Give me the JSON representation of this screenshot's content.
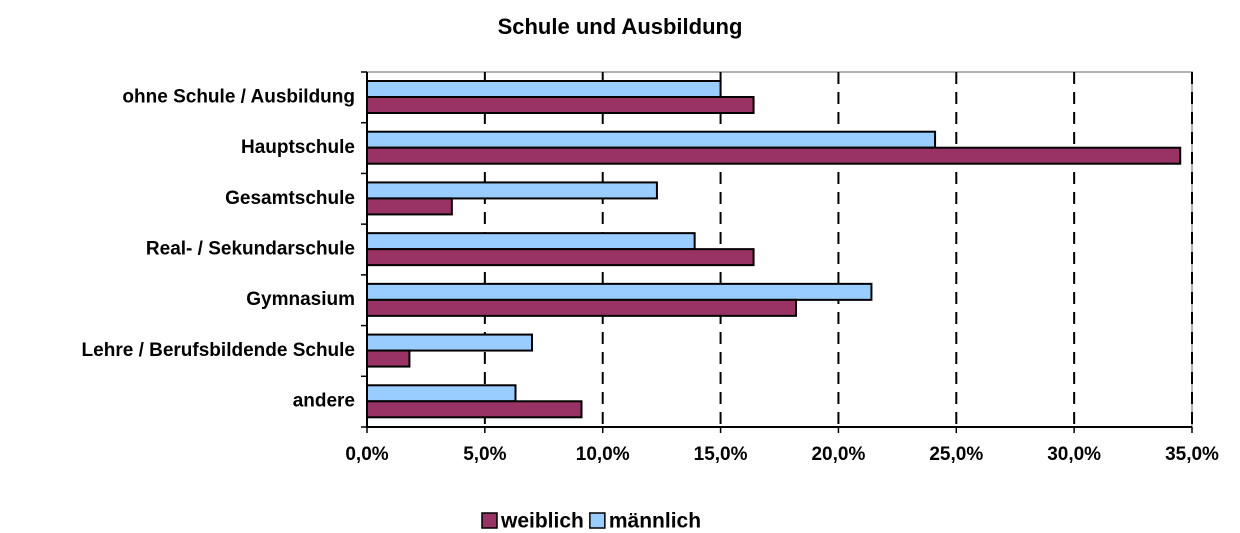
{
  "chart_data": {
    "type": "bar",
    "orientation": "horizontal",
    "title": "Schule und Ausbildung",
    "categories": [
      "ohne Schule / Ausbildung",
      "Hauptschule",
      "Gesamtschule",
      "Real- / Sekundarschule",
      "Gymnasium",
      "Lehre / Berufsbildende Schule",
      "andere"
    ],
    "series": [
      {
        "name": "weiblich",
        "color": "#993366",
        "values": [
          16.4,
          34.5,
          3.6,
          16.4,
          18.2,
          1.8,
          9.1
        ]
      },
      {
        "name": "männlich",
        "color": "#99ccff",
        "values": [
          15.0,
          24.1,
          12.3,
          13.9,
          21.4,
          7.0,
          6.3
        ]
      }
    ],
    "xlim": [
      0,
      35
    ],
    "xticks": [
      {
        "value": 0,
        "label": "0,0%"
      },
      {
        "value": 5,
        "label": "5,0%"
      },
      {
        "value": 10,
        "label": "10,0%"
      },
      {
        "value": 15,
        "label": "15,0%"
      },
      {
        "value": 20,
        "label": "20,0%"
      },
      {
        "value": 25,
        "label": "25,0%"
      },
      {
        "value": 30,
        "label": "30,0%"
      },
      {
        "value": 35,
        "label": "35,0%"
      }
    ],
    "grid": true,
    "legend": "bottom"
  }
}
